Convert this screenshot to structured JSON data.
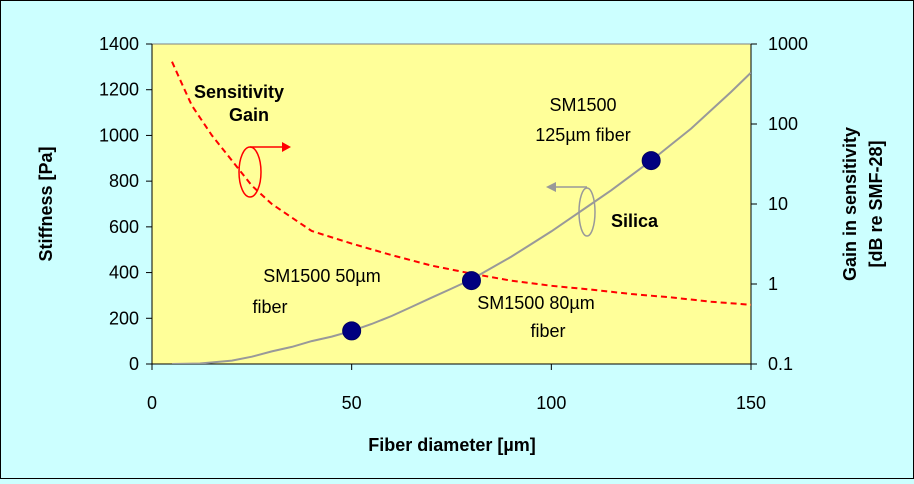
{
  "chart_data": {
    "type": "line",
    "xlabel": "Fiber diameter [µm]",
    "ylabel_left": "Stiffness [Pa]",
    "ylabel_right_line1": "Gain in sensitivity",
    "ylabel_right_line2": "[dB re SMF-28]",
    "xlim": [
      0,
      150
    ],
    "ylim_left": [
      0,
      1400
    ],
    "ylim_right": [
      0.1,
      1000
    ],
    "right_axis_scale": "log",
    "x_ticks": [
      "0",
      "50",
      "100",
      "150"
    ],
    "y_left_ticks": [
      "0",
      "200",
      "400",
      "600",
      "800",
      "1000",
      "1200",
      "1400"
    ],
    "y_right_ticks": [
      "0.1",
      "1",
      "10",
      "100",
      "1000"
    ],
    "plot_background": "#ffff99",
    "page_background": "#ccffff",
    "series": [
      {
        "label": "Silica",
        "axis": "left",
        "color": "#999999",
        "style": "solid",
        "x": [
          5,
          12,
          20,
          25,
          30,
          35,
          40,
          45,
          50,
          55,
          60,
          65,
          70,
          75,
          80,
          85,
          90,
          95,
          100,
          105,
          110,
          115,
          120,
          125,
          130,
          135,
          140,
          145,
          150
        ],
        "y": [
          0,
          2,
          15,
          32,
          55,
          75,
          100,
          120,
          145,
          175,
          210,
          250,
          290,
          330,
          370,
          420,
          470,
          525,
          580,
          640,
          700,
          760,
          825,
          890,
          960,
          1030,
          1110,
          1190,
          1275
        ]
      },
      {
        "label": "Sensitivity Gain",
        "axis": "right",
        "color": "#ff0000",
        "style": "dashed",
        "x": [
          5,
          8,
          10,
          15,
          20,
          25,
          30,
          40,
          50,
          60,
          70,
          80,
          90,
          100,
          110,
          120,
          130,
          140,
          150
        ],
        "y": [
          600,
          280,
          170,
          72,
          35,
          17,
          10,
          4.6,
          3.2,
          2.3,
          1.7,
          1.35,
          1.1,
          0.95,
          0.85,
          0.75,
          0.68,
          0.6,
          0.55
        ]
      }
    ],
    "markers": [
      {
        "x": 50,
        "y": 145,
        "label_line1": "SM1500 50µm",
        "label_line2": "fiber"
      },
      {
        "x": 80,
        "y": 365,
        "label_line1": "SM1500 80µm",
        "label_line2": "fiber"
      },
      {
        "x": 125,
        "y": 890,
        "label_line1": "SM1500",
        "label_line2": "125µm fiber"
      }
    ],
    "annotations": {
      "gain_line1": "Sensitivity",
      "gain_line2": "Gain",
      "silica": "Silica"
    }
  }
}
